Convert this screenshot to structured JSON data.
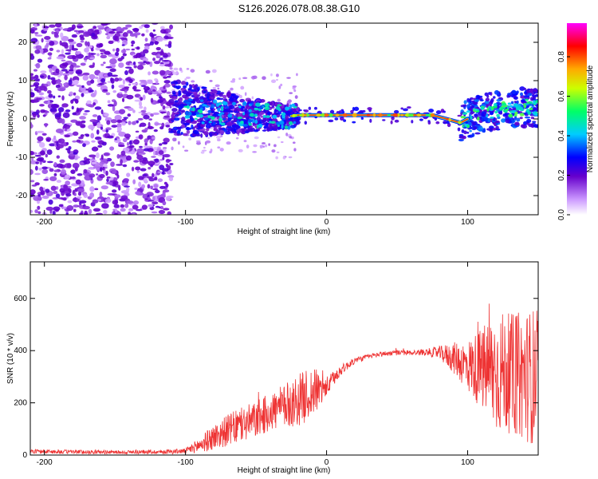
{
  "title": "S126.2026.078.08.38.G10",
  "chart_data": [
    {
      "type": "heatmap",
      "xlabel": "Height of straight line (km)",
      "ylabel": "Frequency (Hz)",
      "xlim": [
        -210,
        150
      ],
      "ylim": [
        -25,
        25
      ],
      "xticks": [
        -200,
        -100,
        0,
        100
      ],
      "yticks": [
        -20,
        -10,
        0,
        10,
        20
      ],
      "colorbar": {
        "label": "Normalized spectral amplitude",
        "range": [
          0,
          0.97
        ],
        "ticks": [
          0.0,
          0.2,
          0.4,
          0.6,
          0.8
        ]
      },
      "ridge": {
        "x": [
          -110,
          -90,
          -70,
          -50,
          -30,
          -20,
          0,
          20,
          40,
          60,
          75,
          85,
          95,
          105,
          120,
          135,
          150
        ],
        "freq": [
          3,
          2,
          1.5,
          1,
          0.5,
          1,
          1,
          1,
          1,
          1,
          1,
          0,
          -1,
          1,
          2,
          3,
          3
        ]
      }
    },
    {
      "type": "line",
      "xlabel": "Height of straight line (km)",
      "ylabel": "SNR (10 * v/v)",
      "xlim": [
        -210,
        150
      ],
      "ylim": [
        0,
        740
      ],
      "xticks": [
        -200,
        -100,
        0,
        100
      ],
      "yticks": [
        0,
        200,
        400,
        600
      ],
      "series": [
        {
          "name": "SNR",
          "color": "#ee3333",
          "x": [
            -210,
            -180,
            -150,
            -120,
            -100,
            -90,
            -80,
            -70,
            -60,
            -50,
            -40,
            -30,
            -20,
            -10,
            0,
            10,
            20,
            30,
            40,
            50,
            60,
            70,
            80,
            90,
            100,
            110,
            120,
            130,
            140,
            150
          ],
          "y": [
            14,
            12,
            11,
            12,
            15,
            38,
            68,
            95,
            115,
            135,
            165,
            185,
            210,
            240,
            260,
            325,
            362,
            378,
            388,
            392,
            392,
            395,
            392,
            372,
            342,
            330,
            320,
            312,
            305,
            300
          ],
          "spread": [
            8,
            8,
            7,
            8,
            10,
            30,
            50,
            60,
            70,
            70,
            75,
            85,
            100,
            100,
            40,
            20,
            12,
            10,
            10,
            10,
            10,
            12,
            25,
            60,
            100,
            160,
            240,
            230,
            250,
            270
          ]
        }
      ]
    }
  ]
}
